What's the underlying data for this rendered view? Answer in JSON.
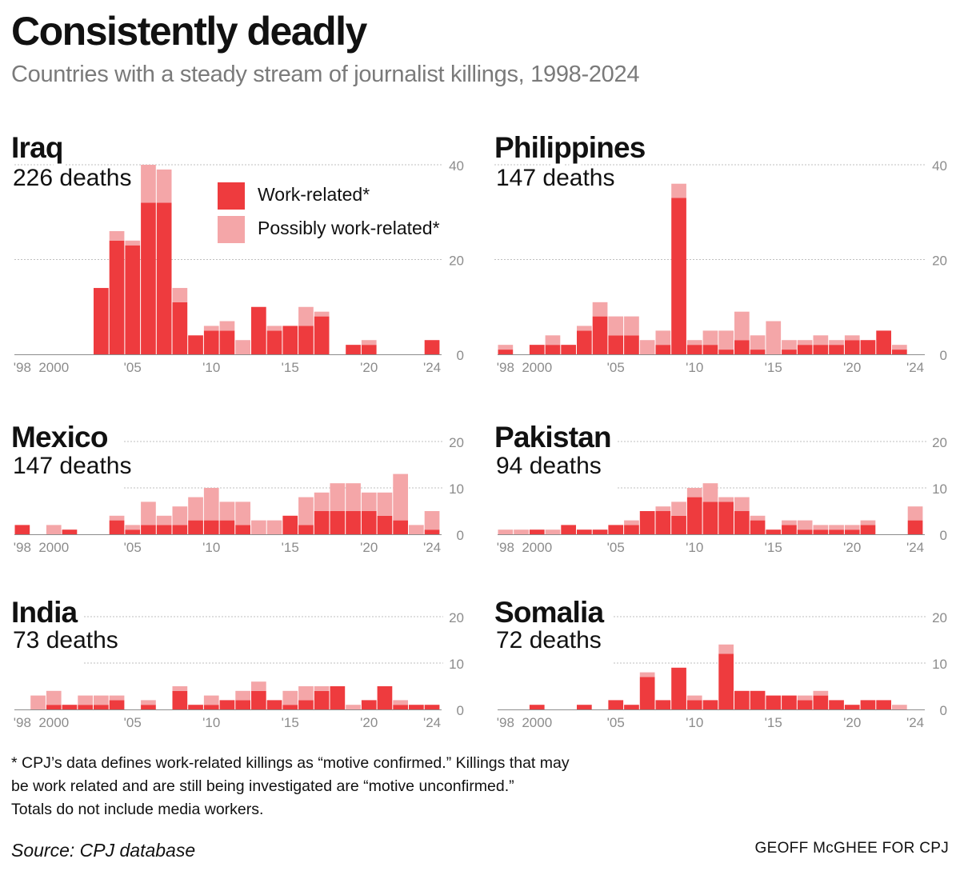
{
  "title": "Consistently deadly",
  "subtitle": "Countries with a steady stream of journalist killings, 1998-2024",
  "legend": {
    "work": "Work-related*",
    "possibly": "Possibly work-related*"
  },
  "colors": {
    "work": "#ee3b3e",
    "possibly": "#f4a6a8",
    "grid": "#bfbfbf",
    "axis": "#8c8c8c"
  },
  "footnote": [
    "* CPJ’s data defines work-related killings as “motive confirmed.” Killings that may",
    "be work related and are still being investigated are “motive unconfirmed.”",
    "Totals do not include media workers."
  ],
  "source": "Source: CPJ database",
  "credit": "GEOFF McGHEE FOR CPJ",
  "chart_data": [
    {
      "type": "bar",
      "stacked": true,
      "title": "Iraq",
      "subtitle": "226 deaths",
      "categories": [
        1998,
        1999,
        2000,
        2001,
        2002,
        2003,
        2004,
        2005,
        2006,
        2007,
        2008,
        2009,
        2010,
        2011,
        2012,
        2013,
        2014,
        2015,
        2016,
        2017,
        2018,
        2019,
        2020,
        2021,
        2022,
        2023,
        2024
      ],
      "tick_labels": [
        "'98",
        "2000",
        "'05",
        "'10",
        "'15",
        "'20",
        "'24"
      ],
      "tick_years": [
        1998,
        2000,
        2005,
        2010,
        2015,
        2020,
        2024
      ],
      "ylim": [
        0,
        40
      ],
      "yticks": [
        0,
        20,
        40
      ],
      "series": [
        {
          "name": "Work-related*",
          "values": [
            0,
            0,
            0,
            0,
            0,
            14,
            24,
            23,
            32,
            32,
            11,
            4,
            5,
            5,
            0,
            10,
            5,
            6,
            6,
            8,
            0,
            2,
            2,
            0,
            0,
            0,
            3
          ]
        },
        {
          "name": "Possibly work-related*",
          "values": [
            0,
            0,
            0,
            0,
            0,
            0,
            2,
            1,
            8,
            7,
            3,
            0,
            1,
            2,
            3,
            0,
            1,
            0,
            4,
            1,
            0,
            0,
            1,
            0,
            0,
            0,
            0
          ]
        }
      ]
    },
    {
      "type": "bar",
      "stacked": true,
      "title": "Philippines",
      "subtitle": "147 deaths",
      "categories": [
        1998,
        1999,
        2000,
        2001,
        2002,
        2003,
        2004,
        2005,
        2006,
        2007,
        2008,
        2009,
        2010,
        2011,
        2012,
        2013,
        2014,
        2015,
        2016,
        2017,
        2018,
        2019,
        2020,
        2021,
        2022,
        2023,
        2024
      ],
      "tick_labels": [
        "'98",
        "2000",
        "'05",
        "'10",
        "'15",
        "'20",
        "'24"
      ],
      "tick_years": [
        1998,
        2000,
        2005,
        2010,
        2015,
        2020,
        2024
      ],
      "ylim": [
        0,
        40
      ],
      "yticks": [
        0,
        20,
        40
      ],
      "series": [
        {
          "name": "Work-related*",
          "values": [
            1,
            0,
            2,
            2,
            2,
            5,
            8,
            4,
            4,
            0,
            2,
            33,
            2,
            2,
            1,
            3,
            1,
            0,
            1,
            2,
            2,
            2,
            3,
            3,
            5,
            1,
            0
          ]
        },
        {
          "name": "Possibly work-related*",
          "values": [
            1,
            0,
            0,
            2,
            0,
            1,
            3,
            4,
            4,
            3,
            3,
            3,
            1,
            3,
            4,
            6,
            3,
            7,
            2,
            1,
            2,
            1,
            1,
            0,
            0,
            1,
            0
          ]
        }
      ]
    },
    {
      "type": "bar",
      "stacked": true,
      "title": "Mexico",
      "subtitle": "147 deaths",
      "categories": [
        1998,
        1999,
        2000,
        2001,
        2002,
        2003,
        2004,
        2005,
        2006,
        2007,
        2008,
        2009,
        2010,
        2011,
        2012,
        2013,
        2014,
        2015,
        2016,
        2017,
        2018,
        2019,
        2020,
        2021,
        2022,
        2023,
        2024
      ],
      "tick_labels": [
        "'98",
        "2000",
        "'05",
        "'10",
        "'15",
        "'20",
        "'24"
      ],
      "tick_years": [
        1998,
        2000,
        2005,
        2010,
        2015,
        2020,
        2024
      ],
      "ylim": [
        0,
        20
      ],
      "yticks": [
        0,
        10,
        20
      ],
      "series": [
        {
          "name": "Work-related*",
          "values": [
            2,
            0,
            0,
            1,
            0,
            0,
            3,
            1,
            2,
            2,
            2,
            3,
            3,
            3,
            2,
            0,
            0,
            4,
            2,
            5,
            5,
            5,
            5,
            4,
            3,
            0,
            1
          ]
        },
        {
          "name": "Possibly work-related*",
          "values": [
            0,
            0,
            2,
            0,
            0,
            0,
            1,
            1,
            5,
            2,
            4,
            5,
            7,
            4,
            5,
            3,
            3,
            0,
            6,
            4,
            6,
            6,
            4,
            5,
            10,
            2,
            4
          ]
        }
      ]
    },
    {
      "type": "bar",
      "stacked": true,
      "title": "Pakistan",
      "subtitle": "94 deaths",
      "categories": [
        1998,
        1999,
        2000,
        2001,
        2002,
        2003,
        2004,
        2005,
        2006,
        2007,
        2008,
        2009,
        2010,
        2011,
        2012,
        2013,
        2014,
        2015,
        2016,
        2017,
        2018,
        2019,
        2020,
        2021,
        2022,
        2023,
        2024
      ],
      "tick_labels": [
        "'98",
        "2000",
        "'05",
        "'10",
        "'15",
        "'20",
        "'24"
      ],
      "tick_years": [
        1998,
        2000,
        2005,
        2010,
        2015,
        2020,
        2024
      ],
      "ylim": [
        0,
        20
      ],
      "yticks": [
        0,
        10,
        20
      ],
      "series": [
        {
          "name": "Work-related*",
          "values": [
            0,
            0,
            1,
            0,
            2,
            1,
            1,
            2,
            2,
            5,
            5,
            4,
            8,
            7,
            7,
            5,
            3,
            1,
            2,
            1,
            1,
            1,
            1,
            2,
            0,
            0,
            3
          ]
        },
        {
          "name": "Possibly work-related*",
          "values": [
            1,
            1,
            0,
            1,
            0,
            0,
            0,
            0,
            1,
            0,
            1,
            3,
            2,
            4,
            1,
            3,
            1,
            0,
            1,
            2,
            1,
            1,
            1,
            1,
            0,
            0,
            3
          ]
        }
      ]
    },
    {
      "type": "bar",
      "stacked": true,
      "title": "India",
      "subtitle": "73 deaths",
      "categories": [
        1998,
        1999,
        2000,
        2001,
        2002,
        2003,
        2004,
        2005,
        2006,
        2007,
        2008,
        2009,
        2010,
        2011,
        2012,
        2013,
        2014,
        2015,
        2016,
        2017,
        2018,
        2019,
        2020,
        2021,
        2022,
        2023,
        2024
      ],
      "tick_labels": [
        "'98",
        "2000",
        "'05",
        "'10",
        "'15",
        "'20",
        "'24"
      ],
      "tick_years": [
        1998,
        2000,
        2005,
        2010,
        2015,
        2020,
        2024
      ],
      "ylim": [
        0,
        20
      ],
      "yticks": [
        0,
        10,
        20
      ],
      "series": [
        {
          "name": "Work-related*",
          "values": [
            0,
            0,
            1,
            1,
            1,
            1,
            2,
            0,
            1,
            0,
            4,
            1,
            1,
            2,
            2,
            4,
            2,
            1,
            2,
            4,
            5,
            0,
            2,
            5,
            1,
            1,
            1
          ]
        },
        {
          "name": "Possibly work-related*",
          "values": [
            0,
            3,
            3,
            0,
            2,
            2,
            1,
            0,
            1,
            0,
            1,
            0,
            2,
            0,
            2,
            2,
            0,
            3,
            3,
            1,
            0,
            1,
            0,
            0,
            1,
            0,
            0
          ]
        }
      ]
    },
    {
      "type": "bar",
      "stacked": true,
      "title": "Somalia",
      "subtitle": "72 deaths",
      "categories": [
        1998,
        1999,
        2000,
        2001,
        2002,
        2003,
        2004,
        2005,
        2006,
        2007,
        2008,
        2009,
        2010,
        2011,
        2012,
        2013,
        2014,
        2015,
        2016,
        2017,
        2018,
        2019,
        2020,
        2021,
        2022,
        2023,
        2024
      ],
      "tick_labels": [
        "'98",
        "2000",
        "'05",
        "'10",
        "'15",
        "'20",
        "'24"
      ],
      "tick_years": [
        1998,
        2000,
        2005,
        2010,
        2015,
        2020,
        2024
      ],
      "ylim": [
        0,
        20
      ],
      "yticks": [
        0,
        10,
        20
      ],
      "series": [
        {
          "name": "Work-related*",
          "values": [
            0,
            0,
            1,
            0,
            0,
            1,
            0,
            2,
            1,
            7,
            2,
            9,
            2,
            2,
            12,
            4,
            4,
            3,
            3,
            2,
            3,
            2,
            1,
            2,
            2,
            0,
            0
          ]
        },
        {
          "name": "Possibly work-related*",
          "values": [
            0,
            0,
            0,
            0,
            0,
            0,
            0,
            0,
            0,
            1,
            0,
            0,
            1,
            0,
            2,
            0,
            0,
            0,
            0,
            1,
            1,
            0,
            0,
            0,
            0,
            1,
            0
          ]
        }
      ]
    }
  ]
}
